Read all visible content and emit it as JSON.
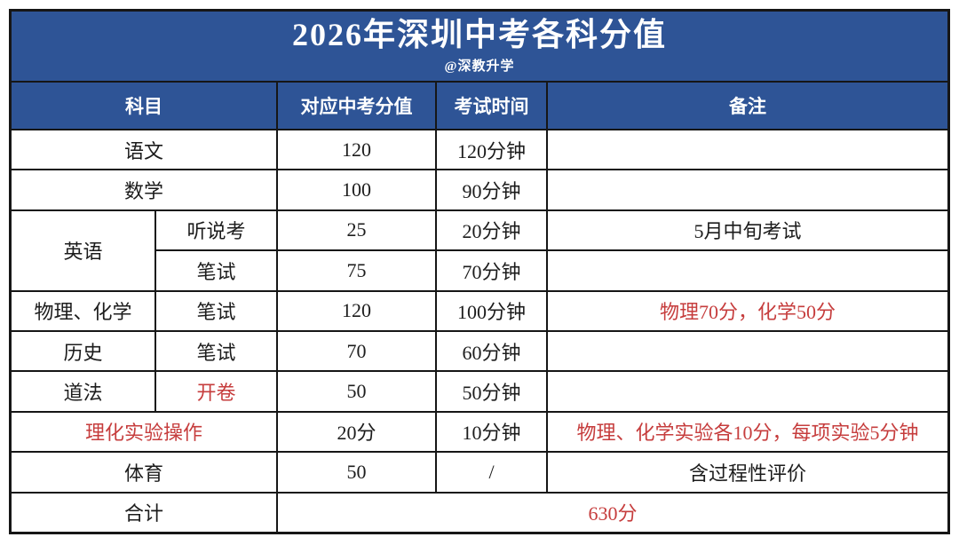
{
  "title": {
    "text": "2026年深圳中考各科分值",
    "watermark": "@深教升学"
  },
  "colors": {
    "header_blue": "#2e5496",
    "accent_red": "#c63d3d",
    "grid_border": "#161616"
  },
  "header": {
    "subject": "科目",
    "score": "对应中考分值",
    "duration": "考试时间",
    "remark": "备注"
  },
  "rows": [
    {
      "subject": "语文",
      "score": "120",
      "duration": "120分钟",
      "remark": ""
    },
    {
      "subject": "数学",
      "score": "100",
      "duration": "90分钟",
      "remark": ""
    },
    {
      "subject": "英语",
      "type": "听说考",
      "score": "25",
      "duration": "20分钟",
      "remark": "5月中旬考试"
    },
    {
      "type": "笔试",
      "score": "75",
      "duration": "70分钟",
      "remark": ""
    },
    {
      "subject": "物理、化学",
      "type": "笔试",
      "score": "120",
      "duration": "100分钟",
      "remark": "物理70分，化学50分"
    },
    {
      "subject": "历史",
      "type": "笔试",
      "score": "70",
      "duration": "60分钟",
      "remark": ""
    },
    {
      "subject": "道法",
      "type": "开卷",
      "score": "50",
      "duration": "50分钟",
      "remark": ""
    },
    {
      "subject": "理化实验操作",
      "score": "20分",
      "duration": "10分钟",
      "remark": "物理、化学实验各10分，每项实验5分钟"
    },
    {
      "subject": "体育",
      "score": "50",
      "duration": "/",
      "remark": "含过程性评价"
    },
    {
      "subject": "合计",
      "total": "630分"
    }
  ]
}
